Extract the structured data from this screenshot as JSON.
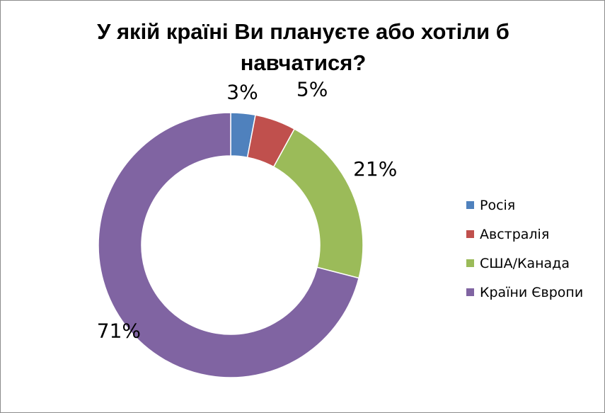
{
  "chart_data": {
    "type": "pie",
    "variant": "doughnut",
    "title_lines": [
      "У якій країні Ви плануєте або хотіли б",
      "навчатися?"
    ],
    "slices": [
      {
        "label": "Росія",
        "value": 3,
        "display": "3%",
        "color": "#4f81bd"
      },
      {
        "label": "Австралія",
        "value": 5,
        "display": "5%",
        "color": "#c0504d"
      },
      {
        "label": "США/Канада",
        "value": 21,
        "display": "21%",
        "color": "#9bbb59"
      },
      {
        "label": "Країни Європи",
        "value": 71,
        "display": "71%",
        "color": "#8064a2"
      }
    ],
    "legend_position": "right"
  }
}
